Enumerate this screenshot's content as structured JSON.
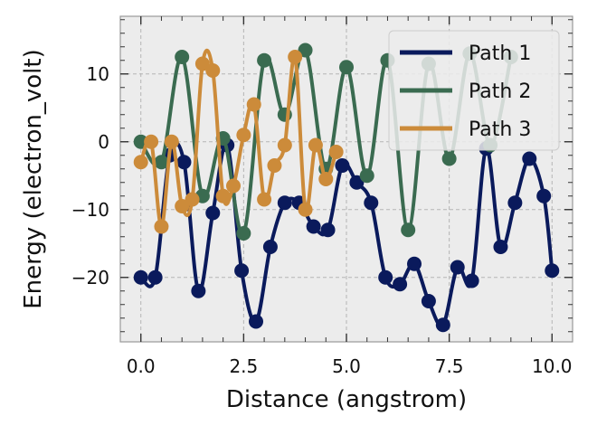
{
  "chart_data": {
    "type": "line",
    "xlabel": "Distance (angstrom)",
    "ylabel": "Energy (electron_volt)",
    "xlim": [
      -0.5,
      10.5
    ],
    "ylim": [
      -29.5,
      18.5
    ],
    "xticks": [
      0.0,
      2.5,
      5.0,
      7.5,
      10.0
    ],
    "xtick_labels": [
      "0.0",
      "2.5",
      "5.0",
      "7.5",
      "10.0"
    ],
    "yticks": [
      -20,
      -10,
      0,
      10
    ],
    "ytick_labels": [
      "−20",
      "−10",
      "0",
      "10"
    ],
    "grid": true,
    "legend_position": "top-right",
    "series": [
      {
        "name": "Path 1",
        "color": "#0a1a5c",
        "x": [
          0.0,
          0.35,
          0.7,
          1.05,
          1.4,
          1.75,
          2.1,
          2.45,
          2.8,
          3.15,
          3.5,
          3.85,
          4.2,
          4.55,
          4.9,
          5.25,
          5.6,
          5.95,
          6.3,
          6.65,
          7.0,
          7.35,
          7.7,
          8.05,
          8.4,
          8.75,
          9.1,
          9.45,
          9.8,
          10.0
        ],
        "y": [
          -20,
          -20,
          -2,
          -3,
          -22,
          -10.5,
          -0.5,
          -19,
          -26.5,
          -15.5,
          -9,
          -9,
          -12.5,
          -13,
          -3.5,
          -6,
          -9,
          -20,
          -21,
          -18,
          -23.5,
          -27,
          -18.5,
          -20.5,
          -1,
          -15.5,
          -9,
          -2.5,
          -8,
          -19
        ]
      },
      {
        "name": "Path 2",
        "color": "#3a6b50",
        "x": [
          0.0,
          0.5,
          1.0,
          1.5,
          2.0,
          2.5,
          3.0,
          3.5,
          4.0,
          4.5,
          5.0,
          5.5,
          6.0,
          6.5,
          7.0,
          7.5,
          8.0,
          8.5,
          9.0
        ],
        "y": [
          0,
          -3,
          12.5,
          -8,
          0.5,
          -13.5,
          12,
          4,
          13.5,
          -4,
          11,
          -5,
          12,
          -13,
          11.5,
          -2.5,
          13,
          -0.5,
          12.5
        ]
      },
      {
        "name": "Path 3",
        "color": "#cc8b3a",
        "x": [
          0.0,
          0.25,
          0.5,
          0.75,
          1.0,
          1.25,
          1.5,
          1.75,
          2.0,
          2.25,
          2.5,
          2.75,
          3.0,
          3.25,
          3.5,
          3.75,
          4.0,
          4.25,
          4.5,
          4.75
        ],
        "y": [
          -3,
          0,
          -12.5,
          0,
          -9.5,
          -8.5,
          11.5,
          10.5,
          -8,
          -6.5,
          1,
          5.5,
          -8.5,
          -3.5,
          -0.5,
          12.5,
          -10,
          -0.5,
          -5.5,
          -1.5
        ]
      }
    ]
  }
}
